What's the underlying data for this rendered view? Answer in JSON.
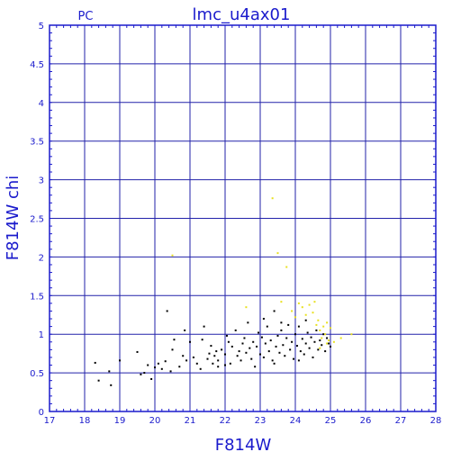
{
  "chart_data": {
    "type": "scatter",
    "title": "lmc_u4ax01",
    "corner_label": "PC",
    "xlabel": "F814W",
    "ylabel": "F814W chi",
    "xlim": [
      17,
      28
    ],
    "ylim": [
      0,
      5
    ],
    "xticks": [
      17,
      18,
      19,
      20,
      21,
      22,
      23,
      24,
      25,
      26,
      27,
      28
    ],
    "yticks": [
      0,
      0.5,
      1,
      1.5,
      2,
      2.5,
      3,
      3.5,
      4,
      4.5,
      5
    ],
    "grid": true,
    "colors": {
      "frame": "#1a1acc",
      "grid": "#2222aa",
      "text": "#1a1acc",
      "series_black": "#000000",
      "series_yellow": "#e8e020"
    },
    "series": [
      {
        "color": "#000000",
        "points": [
          [
            18.3,
            0.63
          ],
          [
            18.4,
            0.4
          ],
          [
            18.7,
            0.52
          ],
          [
            18.75,
            0.34
          ],
          [
            19.0,
            0.66
          ],
          [
            19.5,
            0.77
          ],
          [
            19.6,
            0.48
          ],
          [
            19.7,
            0.5
          ],
          [
            19.8,
            0.6
          ],
          [
            19.9,
            0.42
          ],
          [
            20.0,
            0.57
          ],
          [
            20.1,
            0.62
          ],
          [
            20.2,
            0.55
          ],
          [
            20.3,
            0.65
          ],
          [
            20.35,
            1.3
          ],
          [
            20.45,
            0.52
          ],
          [
            20.5,
            0.8
          ],
          [
            20.55,
            0.93
          ],
          [
            20.7,
            0.58
          ],
          [
            20.8,
            0.72
          ],
          [
            20.85,
            1.05
          ],
          [
            20.9,
            0.66
          ],
          [
            21.0,
            0.9
          ],
          [
            21.1,
            0.7
          ],
          [
            21.2,
            0.62
          ],
          [
            21.3,
            0.55
          ],
          [
            21.35,
            0.93
          ],
          [
            21.4,
            1.1
          ],
          [
            21.5,
            0.68
          ],
          [
            21.55,
            0.75
          ],
          [
            21.6,
            0.85
          ],
          [
            21.65,
            0.62
          ],
          [
            21.7,
            0.72
          ],
          [
            21.75,
            0.78
          ],
          [
            21.8,
            0.66
          ],
          [
            21.9,
            0.8
          ],
          [
            22.0,
            0.74
          ],
          [
            22.05,
            0.98
          ],
          [
            22.1,
            0.9
          ],
          [
            22.15,
            0.62
          ],
          [
            22.2,
            0.84
          ],
          [
            22.3,
            1.05
          ],
          [
            22.35,
            0.72
          ],
          [
            22.4,
            0.78
          ],
          [
            22.45,
            0.66
          ],
          [
            22.5,
            0.88
          ],
          [
            22.55,
            0.95
          ],
          [
            22.6,
            0.76
          ],
          [
            22.65,
            1.15
          ],
          [
            22.7,
            0.82
          ],
          [
            22.75,
            0.68
          ],
          [
            22.8,
            0.9
          ],
          [
            22.85,
            0.58
          ],
          [
            22.9,
            0.84
          ],
          [
            22.95,
            1.02
          ],
          [
            23.0,
            0.74
          ],
          [
            23.05,
            0.96
          ],
          [
            23.1,
            0.7
          ],
          [
            23.15,
            0.88
          ],
          [
            23.2,
            1.1
          ],
          [
            23.25,
            0.78
          ],
          [
            23.3,
            0.92
          ],
          [
            23.35,
            0.66
          ],
          [
            23.4,
            1.3
          ],
          [
            23.45,
            0.84
          ],
          [
            23.5,
            0.98
          ],
          [
            23.55,
            0.76
          ],
          [
            23.6,
            1.05
          ],
          [
            23.65,
            0.86
          ],
          [
            23.7,
            0.72
          ],
          [
            23.75,
            0.95
          ],
          [
            23.8,
            1.12
          ],
          [
            23.85,
            0.8
          ],
          [
            23.9,
            0.9
          ],
          [
            23.95,
            0.68
          ],
          [
            24.0,
            1.0
          ],
          [
            24.05,
            0.85
          ],
          [
            24.1,
            1.1
          ],
          [
            24.15,
            0.78
          ],
          [
            24.2,
            0.94
          ],
          [
            24.25,
            0.74
          ],
          [
            24.3,
            0.88
          ],
          [
            24.35,
            1.02
          ],
          [
            24.4,
            0.82
          ],
          [
            24.45,
            0.96
          ],
          [
            24.5,
            0.7
          ],
          [
            24.55,
            0.9
          ],
          [
            24.6,
            1.05
          ],
          [
            24.65,
            0.8
          ],
          [
            24.7,
            0.92
          ],
          [
            24.75,
            0.86
          ],
          [
            24.8,
            1.0
          ],
          [
            24.85,
            0.78
          ],
          [
            24.9,
            0.95
          ],
          [
            24.95,
            0.88
          ],
          [
            25.0,
            0.84
          ],
          [
            23.1,
            1.2
          ],
          [
            23.6,
            1.15
          ],
          [
            24.3,
            1.18
          ],
          [
            22.0,
            0.6
          ],
          [
            21.8,
            0.58
          ],
          [
            23.4,
            0.62
          ],
          [
            24.1,
            0.66
          ]
        ]
      },
      {
        "color": "#e8e020",
        "points": [
          [
            20.5,
            2.02
          ],
          [
            22.6,
            1.35
          ],
          [
            23.35,
            2.76
          ],
          [
            23.5,
            2.05
          ],
          [
            23.6,
            1.42
          ],
          [
            23.75,
            1.87
          ],
          [
            23.9,
            1.3
          ],
          [
            24.0,
            1.22
          ],
          [
            24.1,
            1.4
          ],
          [
            24.2,
            1.35
          ],
          [
            24.3,
            1.25
          ],
          [
            24.4,
            1.38
          ],
          [
            24.5,
            1.28
          ],
          [
            24.55,
            1.42
          ],
          [
            24.6,
            1.12
          ],
          [
            24.65,
            1.18
          ],
          [
            24.7,
            1.05
          ],
          [
            24.75,
            0.95
          ],
          [
            24.8,
            1.1
          ],
          [
            24.85,
            1.0
          ],
          [
            24.9,
            1.15
          ],
          [
            24.95,
            0.92
          ],
          [
            25.0,
            1.08
          ],
          [
            25.3,
            0.95
          ],
          [
            25.6,
            1.0
          ],
          [
            24.7,
            0.82
          ],
          [
            24.9,
            0.88
          ],
          [
            25.1,
            0.9
          ]
        ]
      }
    ]
  }
}
